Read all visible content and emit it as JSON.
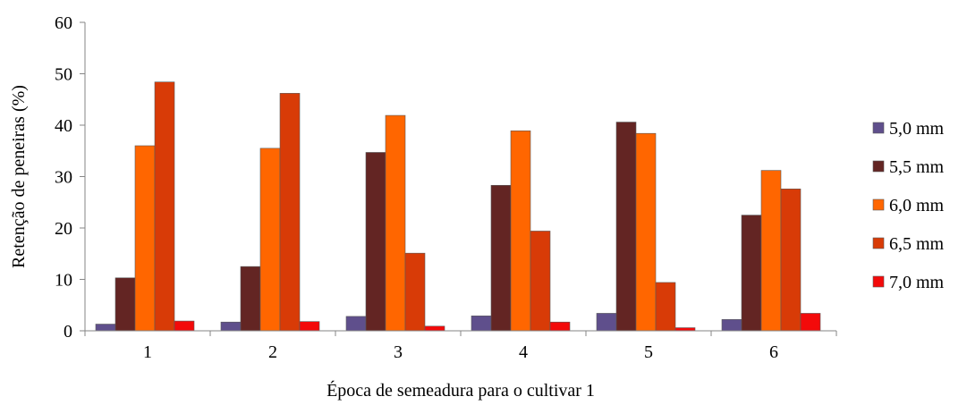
{
  "chart_data": {
    "type": "bar",
    "title": "",
    "xlabel": "Época de semeadura para o cultivar 1",
    "ylabel": "Retenção de peneiras (%)",
    "ylim": [
      0,
      60
    ],
    "yticks": [
      "0",
      "10",
      "20",
      "30",
      "40",
      "50",
      "60"
    ],
    "categories": [
      "1",
      "2",
      "3",
      "4",
      "5",
      "6"
    ],
    "grid": false,
    "legend_position": "right",
    "series": [
      {
        "name": "5,0 mm",
        "color": "#5F4F8C",
        "values": [
          1.3,
          1.7,
          2.8,
          2.9,
          3.4,
          2.2
        ]
      },
      {
        "name": "5,5 mm",
        "color": "#632523",
        "values": [
          10.3,
          12.5,
          34.7,
          28.3,
          40.6,
          22.5
        ]
      },
      {
        "name": "6,0 mm",
        "color": "#FF6600",
        "values": [
          36.0,
          35.5,
          41.9,
          38.9,
          38.4,
          31.2
        ]
      },
      {
        "name": "6,5 mm",
        "color": "#D83B07",
        "values": [
          48.4,
          46.2,
          15.1,
          19.4,
          9.4,
          27.6
        ]
      },
      {
        "name": "7,0 mm",
        "color": "#F30A0A",
        "values": [
          1.9,
          1.8,
          0.9,
          1.7,
          0.6,
          3.4
        ]
      }
    ]
  }
}
